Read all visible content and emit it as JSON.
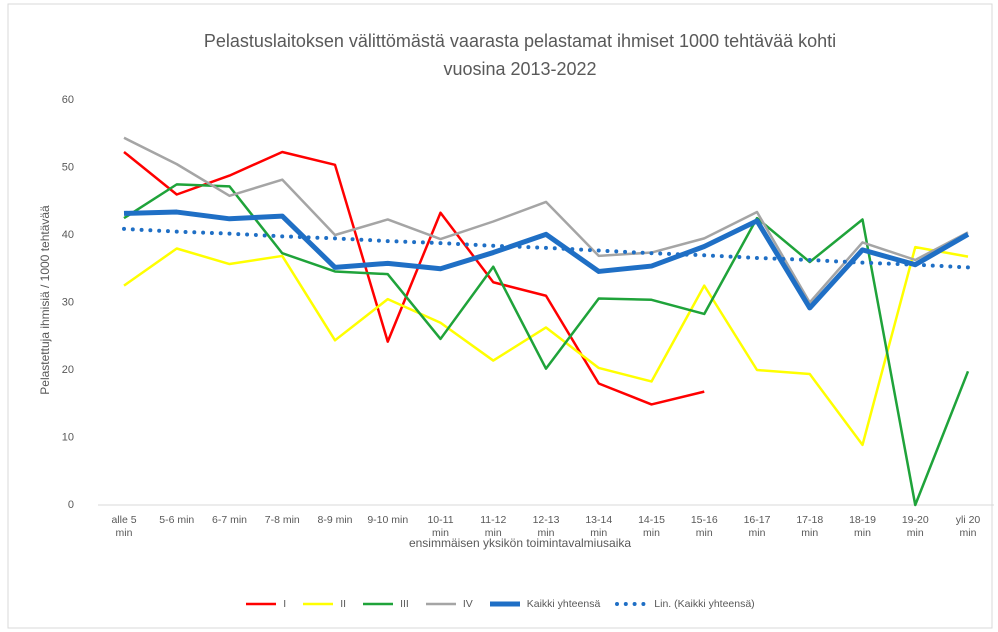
{
  "chart_data": {
    "type": "line",
    "title": [
      "Pelastuslaitoksen välittömästä vaarasta pelastamat ihmiset 1000 tehtävää kohti",
      "vuosina 2013-2022"
    ],
    "xlabel": "ensimmäisen yksikön toimintavalmiusaika",
    "ylabel": "Pelastettuja ihmisiä / 1000 tehtävää",
    "categories": [
      "alle 5 min",
      "5-6 min",
      "6-7 min",
      "7-8 min",
      "8-9 min",
      "9-10 min",
      "10-11 min",
      "11-12 min",
      "12-13 min",
      "13-14 min",
      "14-15 min",
      "15-16 min",
      "16-17 min",
      "17-18 min",
      "18-19 min",
      "19-20 min",
      "yli 20 min"
    ],
    "ylim": [
      0,
      60
    ],
    "yticks": [
      0,
      10,
      20,
      30,
      40,
      50,
      60
    ],
    "grid": false,
    "legend": "bottom",
    "series": [
      {
        "name": "I",
        "color": "#ff0000",
        "width": 2.5,
        "style": "solid",
        "values": [
          52.3,
          46,
          48.8,
          52.3,
          50.4,
          24.2,
          43.3,
          33,
          31,
          18,
          14.9,
          16.8,
          null,
          null,
          null,
          null,
          null
        ]
      },
      {
        "name": "II",
        "color": "#ffff00",
        "width": 2.5,
        "style": "solid",
        "values": [
          32.5,
          38,
          35.7,
          36.9,
          24.4,
          30.5,
          27,
          21.4,
          26.3,
          20.3,
          18.3,
          32.5,
          20,
          19.4,
          8.9,
          38.2,
          36.8
        ]
      },
      {
        "name": "III",
        "color": "#1fa33a",
        "width": 2.5,
        "style": "solid",
        "values": [
          42.5,
          47.5,
          47.2,
          37.3,
          34.6,
          34.2,
          24.6,
          35.3,
          20.2,
          30.6,
          30.4,
          28.3,
          42.5,
          36,
          42.3,
          0,
          19.8
        ]
      },
      {
        "name": "IV",
        "color": "#a5a5a5",
        "width": 2.5,
        "style": "solid",
        "values": [
          54.4,
          50.5,
          45.8,
          48.2,
          40,
          42.3,
          39.4,
          42,
          44.9,
          36.9,
          37.4,
          39.5,
          43.4,
          30,
          38.9,
          36.3,
          40.4
        ]
      },
      {
        "name": "Kaikki yhteensä",
        "color": "#1f6fc5",
        "width": 5,
        "style": "solid",
        "values": [
          43.2,
          43.4,
          42.4,
          42.8,
          35.2,
          35.8,
          35,
          37.4,
          40.1,
          34.6,
          35.4,
          38.3,
          42.1,
          29.2,
          37.8,
          35.6,
          40.1
        ]
      },
      {
        "name": "Lin. (Kaikki yhteensä)",
        "color": "#1f6fc5",
        "width": 4,
        "style": "dotted",
        "values": [
          40.9,
          40.5,
          40.2,
          39.8,
          39.5,
          39.1,
          38.8,
          38.4,
          38.1,
          37.7,
          37.3,
          37,
          36.6,
          36.3,
          35.9,
          35.6,
          35.2
        ]
      }
    ]
  }
}
